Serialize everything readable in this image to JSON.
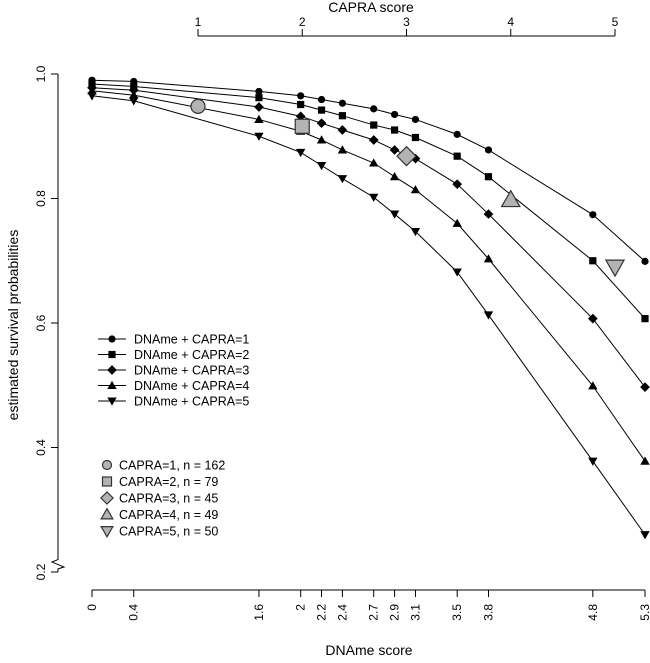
{
  "chart_data": {
    "type": "line",
    "xlabel": "DNAme score",
    "ylabel": "estimated survival probabilities",
    "top_axis_label": "CAPRA score",
    "xlim": [
      0,
      5.3
    ],
    "ylim": [
      0.2,
      1.0
    ],
    "x_ticks": [
      "0",
      "0.4",
      "1.6",
      "2",
      "2.2",
      "2.4",
      "2.7",
      "2.9",
      "3.1",
      "3.5",
      "3.8",
      "4.8",
      "5.3"
    ],
    "x_tick_values": [
      0,
      0.4,
      1.6,
      2,
      2.2,
      2.4,
      2.7,
      2.9,
      3.1,
      3.5,
      3.8,
      4.8,
      5.3
    ],
    "y_ticks": [
      "0.2",
      "0.4",
      "0.6",
      "0.8",
      "1.0"
    ],
    "y_tick_values": [
      0.2,
      0.4,
      0.6,
      0.8,
      1.0
    ],
    "top_ticks": [
      "1",
      "2",
      "3",
      "4",
      "5"
    ],
    "top_tick_values": [
      1,
      2,
      3,
      4,
      5
    ],
    "x": [
      0,
      0.4,
      1.6,
      2,
      2.2,
      2.4,
      2.7,
      2.9,
      3.1,
      3.5,
      3.8,
      4.8,
      5.3
    ],
    "series": [
      {
        "name": "DNAme + CAPRA=1",
        "marker": "circle",
        "values": [
          0.99,
          0.988,
          0.972,
          0.965,
          0.959,
          0.953,
          0.944,
          0.935,
          0.927,
          0.903,
          0.878,
          0.774,
          0.699
        ]
      },
      {
        "name": "DNAme + CAPRA=2",
        "marker": "square",
        "values": [
          0.984,
          0.98,
          0.962,
          0.951,
          0.942,
          0.933,
          0.918,
          0.91,
          0.898,
          0.868,
          0.835,
          0.7,
          0.607
        ]
      },
      {
        "name": "DNAme + CAPRA=3",
        "marker": "diamond",
        "values": [
          0.978,
          0.974,
          0.947,
          0.932,
          0.921,
          0.91,
          0.894,
          0.878,
          0.864,
          0.823,
          0.775,
          0.607,
          0.497
        ]
      },
      {
        "name": "DNAme + CAPRA=4",
        "marker": "triangle-up",
        "values": [
          0.973,
          0.966,
          0.927,
          0.908,
          0.894,
          0.878,
          0.857,
          0.835,
          0.814,
          0.76,
          0.703,
          0.499,
          0.378
        ]
      },
      {
        "name": "DNAme + CAPRA=5",
        "marker": "triangle-down",
        "values": [
          0.965,
          0.957,
          0.9,
          0.874,
          0.853,
          0.832,
          0.802,
          0.775,
          0.747,
          0.682,
          0.613,
          0.378,
          0.26
        ]
      }
    ],
    "capra_points": [
      {
        "label": "CAPRA=1, n = 162",
        "marker": "circle",
        "capra": 1,
        "value": 0.948
      },
      {
        "label": "CAPRA=2, n = 79",
        "marker": "square",
        "capra": 2,
        "value": 0.916
      },
      {
        "label": "CAPRA=3, n = 45",
        "marker": "diamond",
        "capra": 3,
        "value": 0.868
      },
      {
        "label": "CAPRA=4, n = 49",
        "marker": "triangle-up",
        "capra": 4,
        "value": 0.798
      },
      {
        "label": "CAPRA=5, n = 50",
        "marker": "triangle-down",
        "capra": 5,
        "value": 0.69
      }
    ],
    "legend_position": "bottom-left",
    "grid": false,
    "colors": {
      "series": "#000000",
      "capra_fill": "#b3b3b3",
      "capra_stroke": "#333333"
    }
  }
}
